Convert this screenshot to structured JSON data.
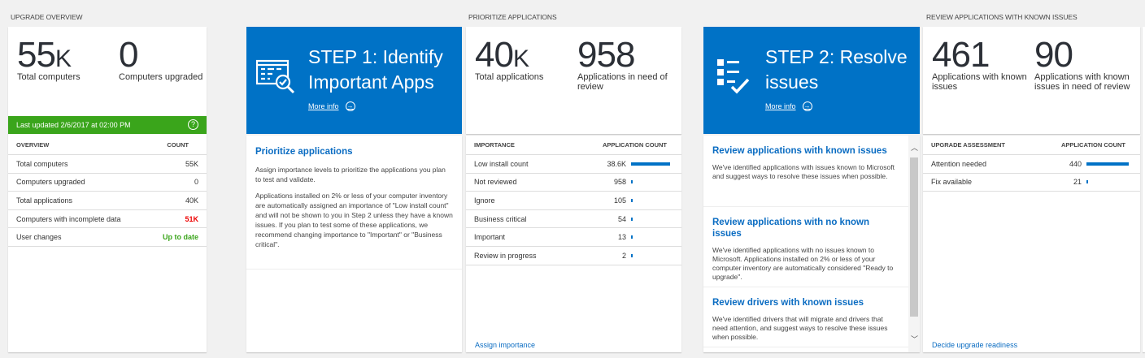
{
  "sections": {
    "overview": "UPGRADE OVERVIEW",
    "prioritize": "PRIORITIZE APPLICATIONS",
    "review": "REVIEW APPLICATIONS WITH KNOWN ISSUES"
  },
  "overview": {
    "kpi1": {
      "value": "55",
      "suffix": "K",
      "label": "Total computers"
    },
    "kpi2": {
      "value": "0",
      "suffix": "",
      "label": "Computers upgraded"
    },
    "last_updated": "Last updated 2/6/2017 at 02:00 PM",
    "help_icon": "?",
    "table": {
      "headers": [
        "OVERVIEW",
        "COUNT"
      ],
      "rows": [
        {
          "label": "Total computers",
          "value": "55K",
          "status": "normal"
        },
        {
          "label": "Computers upgraded",
          "value": "0",
          "status": "normal"
        },
        {
          "label": "Total applications",
          "value": "40K",
          "status": "normal"
        },
        {
          "label": "Computers with incomplete data",
          "value": "51K",
          "status": "error"
        },
        {
          "label": "User changes",
          "value": "Up to date",
          "status": "ok"
        }
      ]
    }
  },
  "step1": {
    "title": "STEP 1: Identify Important Apps",
    "more_info": "More info",
    "icon": "app-list-search-check-icon",
    "heading": "Prioritize applications",
    "paragraphs": [
      "Assign importance levels to prioritize the applications you plan to test and validate.",
      "Applications installed on 2% or less of your computer inventory are automatically assigned an importance of \"Low install count\" and will not be shown to you in Step 2 unless they have a known issues. If you plan to test some of these applications, we recommend changing importance to \"Important\" or \"Business critical\"."
    ]
  },
  "prioritize": {
    "kpi1": {
      "value": "40",
      "suffix": "K",
      "label": "Total applications"
    },
    "kpi2": {
      "value": "958",
      "suffix": "",
      "label": "Applications in need of review"
    },
    "table": {
      "headers": [
        "IMPORTANCE",
        "APPLICATION COUNT"
      ],
      "rows": [
        {
          "label": "Low install count",
          "value": "38.6K",
          "count": 38600
        },
        {
          "label": "Not reviewed",
          "value": "958",
          "count": 958
        },
        {
          "label": "Ignore",
          "value": "105",
          "count": 105
        },
        {
          "label": "Business critical",
          "value": "54",
          "count": 54
        },
        {
          "label": "Important",
          "value": "13",
          "count": 13
        },
        {
          "label": "Review in progress",
          "value": "2",
          "count": 2
        }
      ]
    },
    "link": "Assign importance"
  },
  "step2": {
    "title": "STEP 2: Resolve issues",
    "more_info": "More info",
    "icon": "checklist-icon",
    "items": [
      {
        "heading": "Review applications with known issues",
        "text": "We've identified applications with issues known to Microsoft and suggest ways to resolve these issues when possible."
      },
      {
        "heading": "Review applications with no known issues",
        "text": "We've identified applications with no issues known to Microsoft. Applications installed on 2% or less of your computer inventory are automatically considered \"Ready to upgrade\"."
      },
      {
        "heading": "Review drivers with known issues",
        "text": "We've identified drivers that will migrate and drivers that need attention, and suggest ways to resolve these issues when possible."
      }
    ]
  },
  "review": {
    "kpi1": {
      "value": "461",
      "suffix": "",
      "label": "Applications with known issues"
    },
    "kpi2": {
      "value": "90",
      "suffix": "",
      "label": "Applications with known issues in need of review"
    },
    "table": {
      "headers": [
        "UPGRADE ASSESSMENT",
        "APPLICATION COUNT"
      ],
      "rows": [
        {
          "label": "Attention needed",
          "value": "440",
          "count": 440
        },
        {
          "label": "Fix available",
          "value": "21",
          "count": 21
        }
      ]
    },
    "link": "Decide upgrade readiness"
  },
  "colors": {
    "accent": "#0072c6",
    "success": "#3aa51b",
    "error": "#e00000"
  }
}
